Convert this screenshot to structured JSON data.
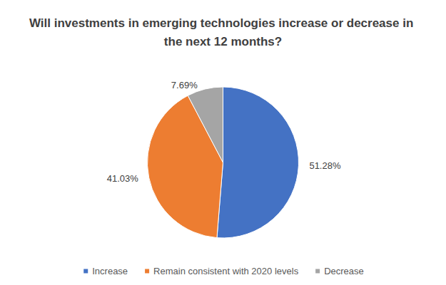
{
  "chart_data": {
    "type": "pie",
    "title": "Will investments in emerging technologies increase or decrease in the next 12 months?",
    "categories": [
      "Increase",
      "Remain consistent with 2020 levels",
      "Decrease"
    ],
    "values": [
      51.28,
      41.03,
      7.69
    ],
    "value_labels": [
      "51.28%",
      "41.03%",
      "7.69%"
    ],
    "colors": [
      "#4472c4",
      "#ed7d31",
      "#a5a5a5"
    ],
    "data_labels": true,
    "legend": "bottom"
  }
}
